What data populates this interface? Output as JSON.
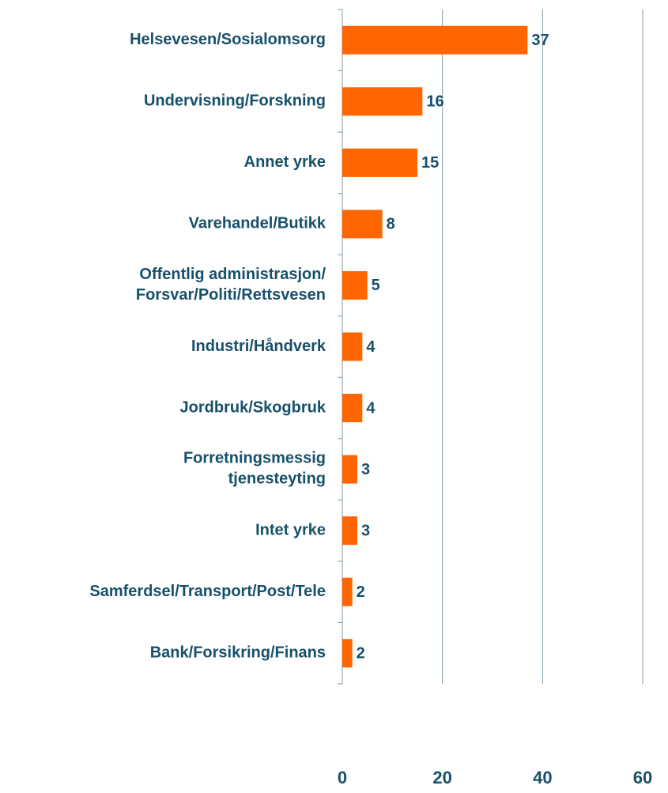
{
  "chart_data": {
    "type": "bar",
    "orientation": "horizontal",
    "categories": [
      "Helsevesen/Sosialomsorg",
      "Undervisning/Forskning",
      "Annet yrke",
      "Varehandel/Butikk",
      "Offentlig administrasjon/\nForsvar/Politi/Rettsvesen",
      "Industri/Håndverk",
      "Jordbruk/Skogbruk",
      "Forretningsmessig\ntjenesteyting",
      "Intet yrke",
      "Samferdsel/Transport/Post/Tele",
      "Bank/Forsikring/Finans"
    ],
    "values": [
      37,
      16,
      15,
      8,
      5,
      4,
      4,
      3,
      3,
      2,
      2
    ],
    "color": "#ff6600",
    "xlim": [
      0,
      60
    ],
    "xticks": [
      0,
      20,
      40,
      60
    ],
    "grid": true
  }
}
